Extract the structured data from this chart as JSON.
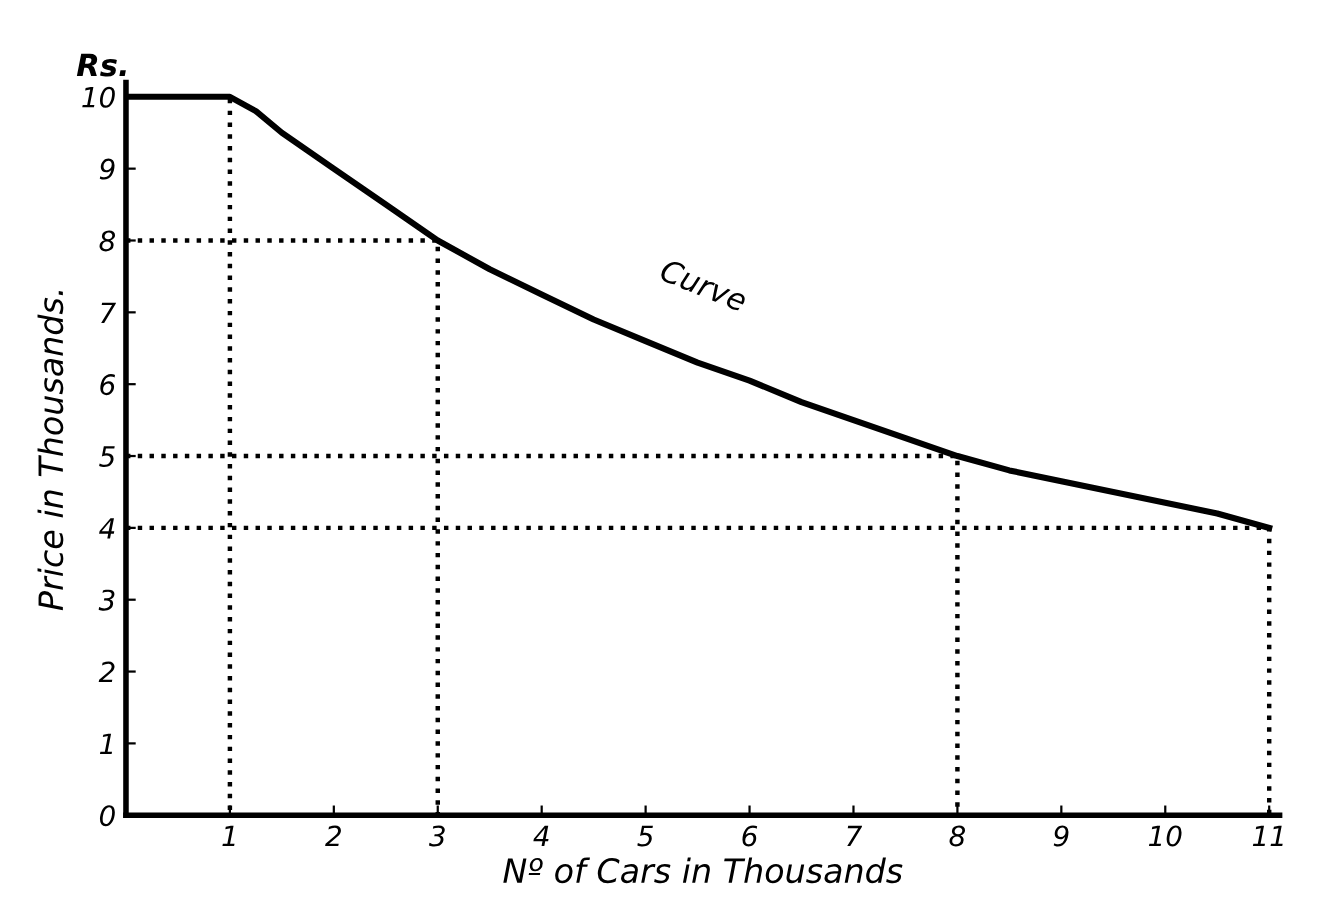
{
  "chart_data": {
    "type": "line",
    "xlabel": "Nº of Cars in Thousands",
    "ylabel": "Price in Thousands.",
    "annotations": [
      "Rs.",
      "Curve"
    ],
    "series": [
      {
        "color": "#000000",
        "line_style": "solid",
        "x": [
          0,
          1,
          1.25,
          1.5,
          2,
          2.5,
          3,
          3.5,
          4,
          4.5,
          5,
          5.5,
          6,
          6.5,
          7,
          7.5,
          8,
          8.5,
          9,
          9.5,
          10,
          10.5,
          11
        ],
        "values": [
          10,
          10,
          9.8,
          9.5,
          9.0,
          8.5,
          8.0,
          7.6,
          7.25,
          6.9,
          6.6,
          6.3,
          6.05,
          5.75,
          5.5,
          5.25,
          5.0,
          4.8,
          4.65,
          4.5,
          4.35,
          4.2,
          4.0
        ]
      },
      {
        "color": "#000000",
        "line_style": "dotted",
        "x": [
          0,
          1,
          1
        ],
        "values": [
          10,
          10,
          0
        ]
      },
      {
        "color": "#000000",
        "line_style": "dotted",
        "x": [
          0,
          3,
          3
        ],
        "values": [
          8,
          8,
          0
        ]
      },
      {
        "color": "#000000",
        "line_style": "dotted",
        "x": [
          0,
          8,
          8
        ],
        "values": [
          5,
          5,
          0
        ]
      },
      {
        "color": "#000000",
        "line_style": "dotted",
        "x": [
          0,
          11,
          11
        ],
        "values": [
          4,
          4,
          0
        ]
      }
    ],
    "xlim": [
      0,
      11.1
    ],
    "ylim": [
      0,
      10.2
    ],
    "xticks": [
      1,
      2,
      3,
      4,
      5,
      6,
      7,
      8,
      9,
      10,
      11
    ],
    "yticks": [
      0,
      1,
      2,
      3,
      4,
      5,
      6,
      7,
      8,
      9,
      10
    ],
    "grid": false,
    "legend": false,
    "marker": "none"
  }
}
